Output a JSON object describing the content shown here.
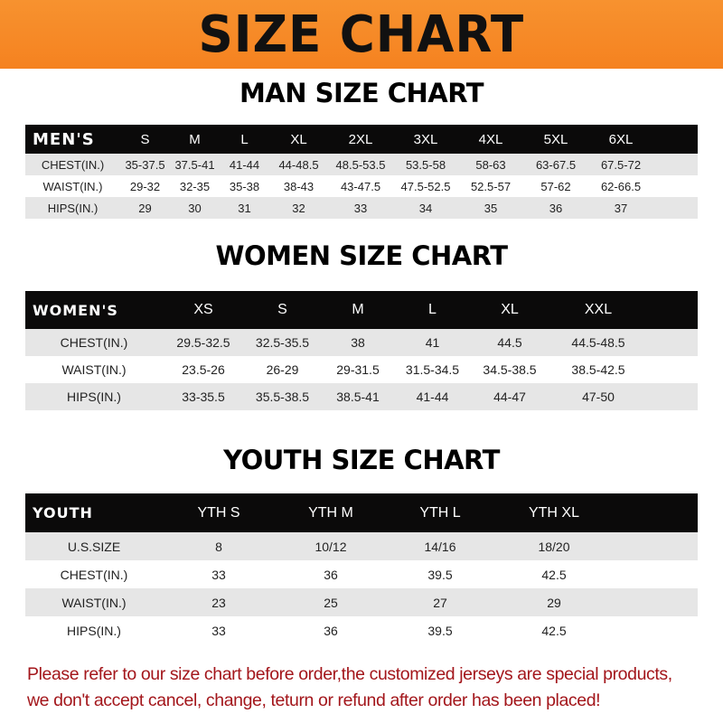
{
  "banner_title": "SIZE CHART",
  "men": {
    "title": "MAN SIZE CHART",
    "header": [
      "MEN'S",
      "S",
      "M",
      "L",
      "XL",
      "2XL",
      "3XL",
      "4XL",
      "5XL",
      "6XL"
    ],
    "rows": [
      [
        "CHEST(IN.)",
        "35-37.5",
        "37.5-41",
        "41-44",
        "44-48.5",
        "48.5-53.5",
        "53.5-58",
        "58-63",
        "63-67.5",
        "67.5-72"
      ],
      [
        "WAIST(IN.)",
        "29-32",
        "32-35",
        "35-38",
        "38-43",
        "43-47.5",
        "47.5-52.5",
        "52.5-57",
        "57-62",
        "62-66.5"
      ],
      [
        "HIPS(IN.)",
        "29",
        "30",
        "31",
        "32",
        "33",
        "34",
        "35",
        "36",
        "37"
      ]
    ]
  },
  "women": {
    "title": "WOMEN SIZE CHART",
    "header": [
      "WOMEN'S",
      "XS",
      "S",
      "M",
      "L",
      "XL",
      "XXL"
    ],
    "rows": [
      [
        "CHEST(IN.)",
        "29.5-32.5",
        "32.5-35.5",
        "38",
        "41",
        "44.5",
        "44.5-48.5"
      ],
      [
        "WAIST(IN.)",
        "23.5-26",
        "26-29",
        "29-31.5",
        "31.5-34.5",
        "34.5-38.5",
        "38.5-42.5"
      ],
      [
        "HIPS(IN.)",
        "33-35.5",
        "35.5-38.5",
        "38.5-41",
        "41-44",
        "44-47",
        "47-50"
      ]
    ]
  },
  "youth": {
    "title": "YOUTH SIZE CHART",
    "header": [
      "YOUTH",
      "YTH S",
      "YTH M",
      "YTH L",
      "YTH XL"
    ],
    "rows": [
      [
        "U.S.SIZE",
        "8",
        "10/12",
        "14/16",
        "18/20"
      ],
      [
        "CHEST(IN.)",
        "33",
        "36",
        "39.5",
        "42.5"
      ],
      [
        "WAIST(IN.)",
        "23",
        "25",
        "27",
        "29"
      ],
      [
        "HIPS(IN.)",
        "33",
        "36",
        "39.5",
        "42.5"
      ]
    ]
  },
  "notice": {
    "line1": "Please refer to our size chart before order,the customized jerseys are special products,",
    "line2": "we don't accept cancel, change, teturn or refund after order has been placed!"
  },
  "colors": {
    "banner": "#f58220",
    "header_row": "#0b0a0a",
    "stripe": "#e6e6e6",
    "notice": "#a3161b"
  }
}
